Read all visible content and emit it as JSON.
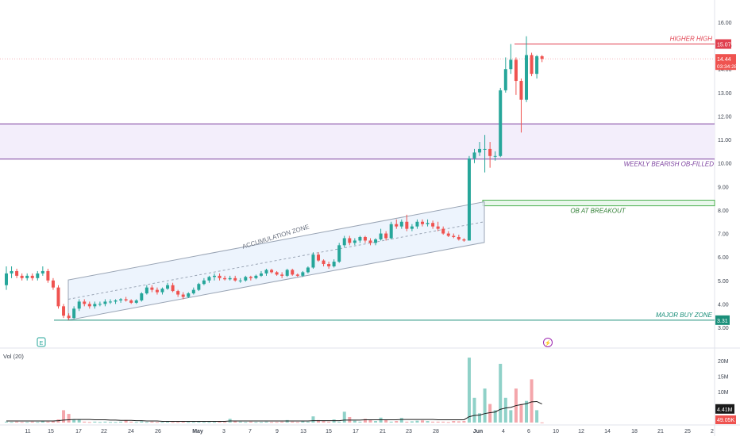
{
  "chart_data": {
    "type": "candlestick",
    "price_axis": {
      "min": 3.0,
      "max": 16.0,
      "ticks": [
        "16.00",
        "15.00",
        "14.00",
        "13.00",
        "12.00",
        "11.00",
        "10.00",
        "9.00",
        "8.00",
        "7.00",
        "6.00",
        "5.00",
        "4.00",
        "3.00"
      ]
    },
    "x_ticks": [
      "11",
      "15",
      "17",
      "22",
      "24",
      "26",
      "May",
      "3",
      "7",
      "9",
      "13",
      "15",
      "17",
      "21",
      "23",
      "28",
      "Jun",
      "4",
      "6",
      "10",
      "12",
      "14",
      "18",
      "21",
      "25",
      "2"
    ],
    "annotations": {
      "higher_high": "HIGHER HIGH",
      "weekly_bearish_ob": "WEEKLY BEARISH  OB-FILLED",
      "ob_at_breakout": "OB AT BREAKOUT",
      "major_buy_zone": "MAJOR BUY ZONE",
      "accumulation_zone": "ACCUMULATION ZONE"
    },
    "levels": {
      "higher_high_value": "15.07",
      "major_buy_value": "3.31",
      "last_price": "14.44",
      "countdown": "03:34:28"
    },
    "zones": {
      "bearish_ob": [
        10.17,
        11.67
      ],
      "breakout_ob": [
        8.18,
        8.42
      ]
    },
    "candles": [
      {
        "o": 4.8,
        "h": 5.6,
        "l": 4.6,
        "c": 5.3
      },
      {
        "o": 5.3,
        "h": 5.6,
        "l": 5.1,
        "c": 5.4
      },
      {
        "o": 5.4,
        "h": 5.5,
        "l": 5.1,
        "c": 5.2
      },
      {
        "o": 5.2,
        "h": 5.3,
        "l": 5.0,
        "c": 5.1
      },
      {
        "o": 5.1,
        "h": 5.3,
        "l": 5.0,
        "c": 5.2
      },
      {
        "o": 5.2,
        "h": 5.3,
        "l": 5.0,
        "c": 5.1
      },
      {
        "o": 5.1,
        "h": 5.4,
        "l": 5.0,
        "c": 5.3
      },
      {
        "o": 5.3,
        "h": 5.6,
        "l": 5.2,
        "c": 5.4
      },
      {
        "o": 5.4,
        "h": 5.5,
        "l": 4.9,
        "c": 5.0
      },
      {
        "o": 5.0,
        "h": 5.1,
        "l": 4.6,
        "c": 4.7
      },
      {
        "o": 4.7,
        "h": 4.8,
        "l": 3.8,
        "c": 3.9
      },
      {
        "o": 3.9,
        "h": 4.0,
        "l": 3.4,
        "c": 3.5
      },
      {
        "o": 3.5,
        "h": 3.6,
        "l": 3.31,
        "c": 3.4
      },
      {
        "o": 3.4,
        "h": 3.9,
        "l": 3.35,
        "c": 3.8
      },
      {
        "o": 3.8,
        "h": 4.2,
        "l": 3.7,
        "c": 4.1
      },
      {
        "o": 4.1,
        "h": 4.2,
        "l": 3.9,
        "c": 4.0
      },
      {
        "o": 4.0,
        "h": 4.1,
        "l": 3.8,
        "c": 3.9
      },
      {
        "o": 3.9,
        "h": 4.1,
        "l": 3.8,
        "c": 4.0
      },
      {
        "o": 4.0,
        "h": 4.1,
        "l": 3.9,
        "c": 4.0
      },
      {
        "o": 4.0,
        "h": 4.2,
        "l": 3.9,
        "c": 4.1
      },
      {
        "o": 4.1,
        "h": 4.2,
        "l": 4.0,
        "c": 4.1
      },
      {
        "o": 4.1,
        "h": 4.2,
        "l": 4.0,
        "c": 4.15
      },
      {
        "o": 4.15,
        "h": 4.25,
        "l": 4.05,
        "c": 4.2
      },
      {
        "o": 4.2,
        "h": 4.3,
        "l": 4.1,
        "c": 4.15
      },
      {
        "o": 4.15,
        "h": 4.2,
        "l": 4.0,
        "c": 4.05
      },
      {
        "o": 4.05,
        "h": 4.2,
        "l": 4.0,
        "c": 4.15
      },
      {
        "o": 4.15,
        "h": 4.5,
        "l": 4.1,
        "c": 4.45
      },
      {
        "o": 4.45,
        "h": 4.8,
        "l": 4.4,
        "c": 4.7
      },
      {
        "o": 4.7,
        "h": 4.8,
        "l": 4.5,
        "c": 4.6
      },
      {
        "o": 4.6,
        "h": 4.7,
        "l": 4.4,
        "c": 4.5
      },
      {
        "o": 4.5,
        "h": 4.7,
        "l": 4.4,
        "c": 4.65
      },
      {
        "o": 4.65,
        "h": 4.9,
        "l": 4.6,
        "c": 4.8
      },
      {
        "o": 4.8,
        "h": 4.9,
        "l": 4.5,
        "c": 4.55
      },
      {
        "o": 4.55,
        "h": 4.6,
        "l": 4.3,
        "c": 4.4
      },
      {
        "o": 4.4,
        "h": 4.5,
        "l": 4.2,
        "c": 4.3
      },
      {
        "o": 4.3,
        "h": 4.5,
        "l": 4.25,
        "c": 4.45
      },
      {
        "o": 4.45,
        "h": 4.7,
        "l": 4.4,
        "c": 4.6
      },
      {
        "o": 4.6,
        "h": 4.9,
        "l": 4.55,
        "c": 4.85
      },
      {
        "o": 4.85,
        "h": 5.1,
        "l": 4.8,
        "c": 5.0
      },
      {
        "o": 5.0,
        "h": 5.2,
        "l": 4.9,
        "c": 5.15
      },
      {
        "o": 5.15,
        "h": 5.3,
        "l": 5.0,
        "c": 5.2
      },
      {
        "o": 5.2,
        "h": 5.3,
        "l": 5.0,
        "c": 5.1
      },
      {
        "o": 5.1,
        "h": 5.2,
        "l": 5.0,
        "c": 5.05
      },
      {
        "o": 5.05,
        "h": 5.2,
        "l": 5.0,
        "c": 5.1
      },
      {
        "o": 5.1,
        "h": 5.2,
        "l": 4.95,
        "c": 5.0
      },
      {
        "o": 5.0,
        "h": 5.1,
        "l": 4.9,
        "c": 5.0
      },
      {
        "o": 5.0,
        "h": 5.2,
        "l": 4.95,
        "c": 5.15
      },
      {
        "o": 5.15,
        "h": 5.2,
        "l": 5.0,
        "c": 5.1
      },
      {
        "o": 5.1,
        "h": 5.25,
        "l": 5.05,
        "c": 5.2
      },
      {
        "o": 5.2,
        "h": 5.4,
        "l": 5.15,
        "c": 5.3
      },
      {
        "o": 5.3,
        "h": 5.5,
        "l": 5.2,
        "c": 5.45
      },
      {
        "o": 5.45,
        "h": 5.5,
        "l": 5.3,
        "c": 5.35
      },
      {
        "o": 5.35,
        "h": 5.4,
        "l": 5.2,
        "c": 5.25
      },
      {
        "o": 5.25,
        "h": 5.35,
        "l": 5.1,
        "c": 5.2
      },
      {
        "o": 5.2,
        "h": 5.5,
        "l": 5.15,
        "c": 5.45
      },
      {
        "o": 5.45,
        "h": 5.5,
        "l": 5.2,
        "c": 5.25
      },
      {
        "o": 5.25,
        "h": 5.3,
        "l": 5.15,
        "c": 5.2
      },
      {
        "o": 5.2,
        "h": 5.4,
        "l": 5.15,
        "c": 5.35
      },
      {
        "o": 5.35,
        "h": 5.6,
        "l": 5.3,
        "c": 5.55
      },
      {
        "o": 5.55,
        "h": 6.2,
        "l": 5.5,
        "c": 6.1
      },
      {
        "o": 6.1,
        "h": 6.2,
        "l": 5.8,
        "c": 5.85
      },
      {
        "o": 5.85,
        "h": 5.9,
        "l": 5.6,
        "c": 5.7
      },
      {
        "o": 5.7,
        "h": 5.8,
        "l": 5.5,
        "c": 5.6
      },
      {
        "o": 5.6,
        "h": 5.9,
        "l": 5.55,
        "c": 5.8
      },
      {
        "o": 5.8,
        "h": 6.6,
        "l": 5.75,
        "c": 6.5
      },
      {
        "o": 6.5,
        "h": 6.9,
        "l": 6.4,
        "c": 6.8
      },
      {
        "o": 6.8,
        "h": 6.9,
        "l": 6.5,
        "c": 6.6
      },
      {
        "o": 6.6,
        "h": 6.8,
        "l": 6.5,
        "c": 6.7
      },
      {
        "o": 6.7,
        "h": 6.9,
        "l": 6.6,
        "c": 6.85
      },
      {
        "o": 6.85,
        "h": 6.9,
        "l": 6.6,
        "c": 6.7
      },
      {
        "o": 6.7,
        "h": 6.8,
        "l": 6.5,
        "c": 6.6
      },
      {
        "o": 6.6,
        "h": 6.8,
        "l": 6.5,
        "c": 6.75
      },
      {
        "o": 6.75,
        "h": 7.2,
        "l": 6.7,
        "c": 7.0
      },
      {
        "o": 7.0,
        "h": 7.1,
        "l": 6.7,
        "c": 6.8
      },
      {
        "o": 6.8,
        "h": 7.5,
        "l": 6.75,
        "c": 7.4
      },
      {
        "o": 7.4,
        "h": 7.6,
        "l": 7.2,
        "c": 7.3
      },
      {
        "o": 7.3,
        "h": 7.6,
        "l": 7.2,
        "c": 7.5
      },
      {
        "o": 7.5,
        "h": 7.8,
        "l": 7.1,
        "c": 7.2
      },
      {
        "o": 7.2,
        "h": 7.4,
        "l": 7.1,
        "c": 7.3
      },
      {
        "o": 7.3,
        "h": 7.6,
        "l": 7.2,
        "c": 7.5
      },
      {
        "o": 7.5,
        "h": 7.6,
        "l": 7.3,
        "c": 7.4
      },
      {
        "o": 7.4,
        "h": 7.6,
        "l": 7.3,
        "c": 7.45
      },
      {
        "o": 7.45,
        "h": 7.55,
        "l": 7.2,
        "c": 7.3
      },
      {
        "o": 7.3,
        "h": 7.5,
        "l": 7.1,
        "c": 7.2
      },
      {
        "o": 7.2,
        "h": 7.3,
        "l": 6.95,
        "c": 7.0
      },
      {
        "o": 7.0,
        "h": 7.1,
        "l": 6.85,
        "c": 6.9
      },
      {
        "o": 6.9,
        "h": 7.0,
        "l": 6.8,
        "c": 6.85
      },
      {
        "o": 6.85,
        "h": 6.95,
        "l": 6.7,
        "c": 6.75
      },
      {
        "o": 6.75,
        "h": 6.8,
        "l": 6.65,
        "c": 6.7
      },
      {
        "o": 6.7,
        "h": 10.3,
        "l": 6.7,
        "c": 10.2
      },
      {
        "o": 10.2,
        "h": 10.6,
        "l": 10.0,
        "c": 10.45
      },
      {
        "o": 10.45,
        "h": 10.9,
        "l": 10.3,
        "c": 10.6
      },
      {
        "o": 10.6,
        "h": 11.2,
        "l": 9.6,
        "c": 10.6
      },
      {
        "o": 10.6,
        "h": 10.9,
        "l": 9.8,
        "c": 10.3
      },
      {
        "o": 10.3,
        "h": 10.5,
        "l": 10.1,
        "c": 10.3
      },
      {
        "o": 10.3,
        "h": 13.2,
        "l": 10.25,
        "c": 13.1
      },
      {
        "o": 13.1,
        "h": 14.5,
        "l": 13.0,
        "c": 14.0
      },
      {
        "o": 14.0,
        "h": 15.07,
        "l": 13.8,
        "c": 14.4
      },
      {
        "o": 14.4,
        "h": 14.5,
        "l": 12.9,
        "c": 13.5
      },
      {
        "o": 13.5,
        "h": 13.6,
        "l": 11.3,
        "c": 12.7
      },
      {
        "o": 12.7,
        "h": 15.4,
        "l": 12.6,
        "c": 14.6
      },
      {
        "o": 14.6,
        "h": 14.7,
        "l": 13.7,
        "c": 13.8
      },
      {
        "o": 13.8,
        "h": 14.6,
        "l": 13.6,
        "c": 14.55
      },
      {
        "o": 14.55,
        "h": 14.6,
        "l": 14.3,
        "c": 14.44
      }
    ],
    "volume_axis": {
      "ticks": [
        "20M",
        "15M",
        "10M",
        "5M"
      ],
      "label": "Vol (20)",
      "current": "4.41M",
      "last": "49.05K"
    },
    "volumes_m": [
      0.3,
      0.2,
      0.3,
      0.2,
      0.2,
      0.3,
      0.2,
      0.4,
      0.3,
      0.5,
      1.0,
      4.0,
      2.8,
      1.0,
      0.9,
      0.3,
      0.2,
      0.3,
      0.2,
      0.3,
      0.2,
      0.2,
      0.3,
      0.8,
      0.3,
      0.2,
      0.4,
      0.2,
      0.3,
      0.2,
      0.2,
      0.3,
      0.2,
      0.2,
      0.3,
      0.2,
      0.2,
      0.3,
      0.2,
      0.2,
      0.2,
      0.3,
      0.2,
      1.2,
      0.6,
      0.3,
      0.2,
      0.3,
      0.2,
      0.2,
      0.3,
      0.2,
      0.2,
      0.3,
      0.8,
      0.3,
      0.2,
      0.4,
      0.3,
      2.0,
      0.8,
      0.5,
      0.3,
      1.0,
      0.3,
      3.5,
      1.8,
      0.6,
      0.3,
      1.2,
      0.8,
      0.5,
      1.6,
      1.0,
      0.3,
      0.5,
      1.5,
      0.3,
      0.4,
      0.6,
      0.7,
      0.5,
      0.3,
      0.3,
      0.3,
      0.2,
      0.5,
      0.4,
      0.5,
      21.0,
      8.0,
      3.0,
      11.0,
      6.0,
      4.0,
      19.0,
      8.0,
      4.0,
      11.0,
      6.0,
      7.0,
      14.0,
      4.0,
      0.05
    ],
    "volume_ma_m": [
      0.5,
      0.5,
      0.5,
      0.5,
      0.5,
      0.5,
      0.5,
      0.5,
      0.5,
      0.5,
      0.6,
      0.8,
      0.9,
      1.0,
      1.0,
      1.0,
      1.0,
      0.9,
      0.9,
      0.9,
      0.8,
      0.8,
      0.7,
      0.7,
      0.7,
      0.6,
      0.6,
      0.5,
      0.5,
      0.5,
      0.4,
      0.4,
      0.4,
      0.4,
      0.4,
      0.4,
      0.4,
      0.4,
      0.4,
      0.4,
      0.4,
      0.4,
      0.4,
      0.5,
      0.5,
      0.5,
      0.5,
      0.5,
      0.5,
      0.5,
      0.5,
      0.5,
      0.5,
      0.5,
      0.5,
      0.5,
      0.5,
      0.5,
      0.5,
      0.6,
      0.6,
      0.6,
      0.6,
      0.6,
      0.6,
      0.8,
      0.8,
      0.8,
      0.8,
      0.9,
      0.9,
      0.9,
      0.9,
      0.9,
      0.9,
      0.9,
      1.0,
      1.0,
      1.0,
      1.0,
      1.0,
      1.0,
      1.0,
      0.9,
      0.9,
      0.9,
      0.9,
      0.9,
      0.9,
      1.9,
      2.3,
      2.4,
      2.9,
      3.2,
      3.4,
      4.3,
      4.7,
      4.9,
      5.5,
      5.8,
      6.1,
      6.7,
      6.8,
      6.0
    ]
  }
}
